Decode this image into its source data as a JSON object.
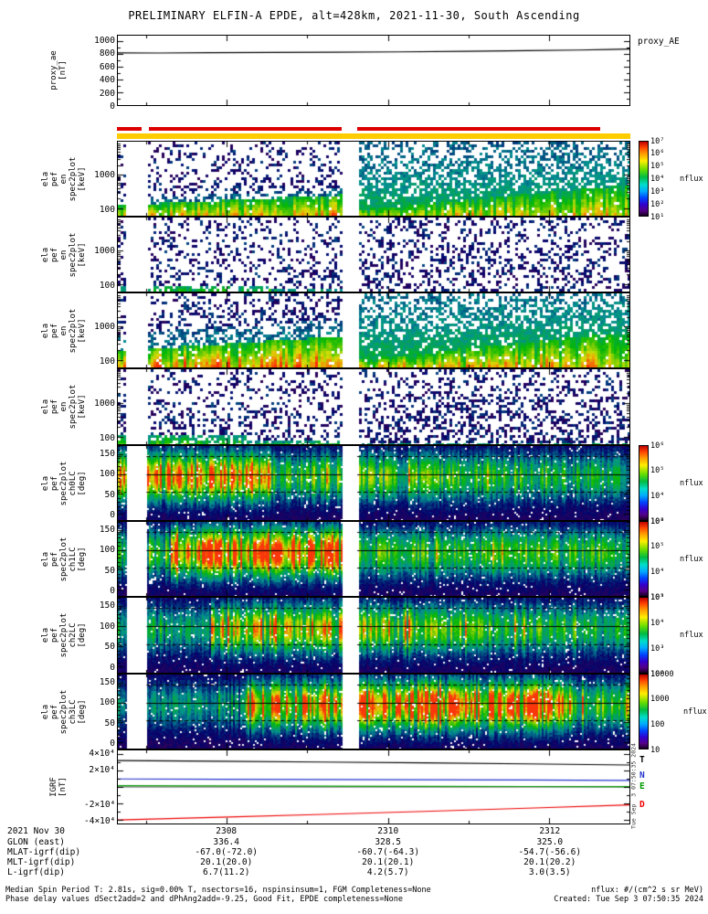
{
  "title": "PRELIMINARY ELFIN-A EPDE, alt=428km, 2021-11-30, South Ascending",
  "colors": {
    "quality_red": "#dd0000",
    "quality_yellow": "#ffcc00",
    "igrf_T": "#000000",
    "igrf_N": "#2233cc",
    "igrf_E": "#009900",
    "igrf_D": "#ee0000"
  },
  "chart_data": {
    "type": "multi-panel-timeseries",
    "time_axis": {
      "date_label": "2021 Nov 30",
      "tick_labels": [
        "2308",
        "2310",
        "2312"
      ]
    },
    "data_gaps_frac": [
      [
        0.016,
        0.056
      ],
      [
        0.437,
        0.468
      ]
    ],
    "quality_bars": {
      "red_segments_frac": [
        [
          0.0,
          0.048
        ],
        [
          0.062,
          0.437
        ],
        [
          0.468,
          0.942
        ]
      ],
      "red_color": "#dd0000",
      "yellow_color": "#ffcc00"
    },
    "panels": [
      {
        "name": "proxy_ae",
        "type": "line",
        "ylabel": "proxy_ae\n[nT]",
        "right_label": "proxy_AE",
        "ytick_labels": [
          "1000",
          "800",
          "600",
          "400",
          "200",
          "0"
        ],
        "ylim": [
          0,
          1080
        ],
        "series": [
          {
            "name": "proxy_AE",
            "color": "#000000",
            "x": [
              0,
              0.08,
              0.18,
              0.3,
              0.42,
              0.55,
              0.68,
              0.8,
              0.9,
              0.96,
              1
            ],
            "y": [
              812,
              810,
              815,
              818,
              822,
              828,
              836,
              846,
              856,
              866,
              872
            ]
          }
        ]
      },
      {
        "name": "ela_pef_en_spec2plot_A",
        "type": "spectrogram",
        "ylabel": "ela\npef\nen\nspec2plot\n[keV]",
        "yscale": "log",
        "ytick_labels": [
          "1000",
          "100"
        ],
        "ylim_kev": [
          60,
          10000
        ],
        "colorbar": {
          "tick_labels": [
            "10⁷",
            "10⁶",
            "10⁵",
            "10⁴",
            "10³",
            "10²",
            "10¹"
          ],
          "label": "nflux"
        },
        "profile": "bright1",
        "description": "Intense 100-300 keV flux band along bottom; diffuse blue-cyan flux cloud at higher energies on right half; data gap near mid-interval"
      },
      {
        "name": "ela_pef_en_spec2plot_B",
        "type": "spectrogram",
        "ylabel": "ela\npef\nen\nspec2plot\n[keV]",
        "yscale": "log",
        "ytick_labels": [
          "1000",
          "100"
        ],
        "ylim_kev": [
          60,
          10000
        ],
        "profile": "sparse1",
        "description": "Sparse scattered low flux; weak green band near 100 keV at left"
      },
      {
        "name": "ela_pef_en_spec2plot_C",
        "type": "spectrogram",
        "ylabel": "ela\npef\nen\nspec2plot\n[keV]",
        "yscale": "log",
        "ytick_labels": [
          "1000",
          "100"
        ],
        "ylim_kev": [
          60,
          10000
        ],
        "profile": "bright2",
        "description": "Bright yellow-green low-energy band, thicker than panel A; broad blue cloud on right half"
      },
      {
        "name": "ela_pef_en_spec2plot_D",
        "type": "spectrogram",
        "ylabel": "ela\npef\nen\nspec2plot\n[keV]",
        "yscale": "log",
        "ytick_labels": [
          "1000",
          "100"
        ],
        "ylim_kev": [
          60,
          10000
        ],
        "profile": "sparse2",
        "description": "Sparse scattered flux with small green patch at lower left"
      },
      {
        "name": "ela_pef_spec2plot_ch0LC",
        "type": "spectrogram",
        "ylabel": "ela\npef\nspec2plot\nch0LC\n[deg]",
        "ytick_labels": [
          "150",
          "100",
          "50",
          "0"
        ],
        "ylim_deg": [
          -15,
          170
        ],
        "colorbar": {
          "tick_labels": [
            "10⁶",
            "10⁵",
            "10⁴",
            "10³"
          ],
          "label": "nflux"
        },
        "profile": "ch0",
        "description": "Pitch-angle spectrogram; bright green-yellow band near 90-100 deg strongest at left; loss-cone guide lines overplotted"
      },
      {
        "name": "ela_pef_spec2plot_ch1LC",
        "type": "spectrogram",
        "ylabel": "ela\npef\nspec2plot\nch1LC\n[deg]",
        "ytick_labels": [
          "150",
          "100",
          "50",
          "0"
        ],
        "ylim_deg": [
          -15,
          170
        ],
        "colorbar": {
          "tick_labels": [
            "10⁶",
            "10⁵",
            "10⁴",
            "10³"
          ],
          "label": "nflux"
        },
        "profile": "ch1",
        "description": "Bright central band near 90-100 deg in left-middle portion; dark purple background"
      },
      {
        "name": "ela_pef_spec2plot_ch2LC",
        "type": "spectrogram",
        "ylabel": "ela\npef\nspec2plot\nch2LC\n[deg]",
        "ytick_labels": [
          "150",
          "100",
          "50",
          "0"
        ],
        "ylim_deg": [
          -15,
          170
        ],
        "colorbar": {
          "tick_labels": [
            "10⁵",
            "10⁴",
            "10³",
            "10²"
          ],
          "label": "nflux"
        },
        "profile": "ch2",
        "description": "Moderate green central band near 90-100 deg across middle and right"
      },
      {
        "name": "ela_pef_spec2plot_ch3LC",
        "type": "spectrogram",
        "ylabel": "ela\npef\nspec2plot\nch3LC\n[deg]",
        "ytick_labels": [
          "150",
          "100",
          "50",
          "0"
        ],
        "ylim_deg": [
          -15,
          170
        ],
        "colorbar": {
          "tick_labels": [
            "10000",
            "1000",
            "100",
            "10"
          ],
          "label": "nflux"
        },
        "profile": "ch3",
        "description": "Bright yellow-green central band near 90-100 deg, strongest on right half"
      },
      {
        "name": "IGRF",
        "type": "line",
        "ylabel": "IGRF\n[nT]",
        "ytick_labels": [
          "4×10⁴",
          "2×10⁴",
          "-2×10⁴",
          "-4×10⁴"
        ],
        "ylim": [
          -44000,
          44000
        ],
        "series": [
          {
            "name": "T",
            "color": "#000000",
            "x": [
              0,
              0.2,
              0.4,
              0.6,
              0.8,
              1
            ],
            "y": [
              31800,
              30900,
              30000,
              29000,
              27800,
              26400
            ]
          },
          {
            "name": "N",
            "color": "#2233cc",
            "x": [
              0,
              0.2,
              0.4,
              0.6,
              0.8,
              1
            ],
            "y": [
              9600,
              9300,
              9000,
              8700,
              8300,
              7900
            ]
          },
          {
            "name": "E",
            "color": "#009900",
            "x": [
              0,
              0.2,
              0.4,
              0.6,
              0.8,
              1
            ],
            "y": [
              1500,
              1250,
              1000,
              780,
              560,
              350
            ]
          },
          {
            "name": "D",
            "color": "#ee0000",
            "x": [
              0,
              0.2,
              0.4,
              0.6,
              0.8,
              1
            ],
            "y": [
              -39800,
              -36500,
              -33000,
              -29400,
              -25600,
              -21500
            ]
          }
        ]
      }
    ],
    "ephemeris_rows": [
      {
        "label": "GLON (east)",
        "values": [
          "336.4",
          "328.5",
          "325.0"
        ]
      },
      {
        "label": "MLAT-igrf(dip)",
        "values": [
          "-67.0(-72.0)",
          "-60.7(-64.3)",
          "-54.7(-56.6)"
        ]
      },
      {
        "label": "MLT-igrf(dip)",
        "values": [
          "20.1(20.0)",
          "20.1(20.1)",
          "20.1(20.2)"
        ]
      },
      {
        "label": "L-igrf(dip)",
        "values": [
          "6.7(11.2)",
          "4.2(5.7)",
          "3.0(3.5)"
        ]
      }
    ]
  },
  "footer": {
    "line1": "Median Spin Period T: 2.81s, sig=0.00% T, nsectors=16, nspinsinsum=1, FGM Completeness=None",
    "line2": "Phase delay values dSect2add=2 and dPhAng2add=-9.25, Good Fit, EPDE completeness=None",
    "right1": "nflux: #/(cm^2 s sr MeV)",
    "right2": "Created: Tue Sep  3 07:50:35 2024"
  },
  "annotations": {
    "created_vertical": "Tue Sep  3 07:50:35 2024"
  }
}
